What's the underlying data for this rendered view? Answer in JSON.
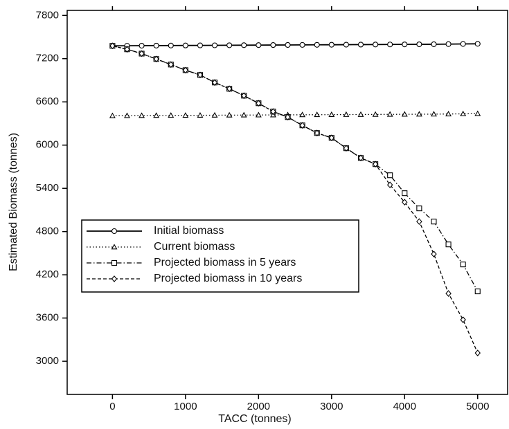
{
  "chart_data": {
    "type": "line",
    "xlabel": "TACC (tonnes)",
    "ylabel": "Estimated Biomass (tonnes)",
    "xlim": [
      -620,
      5410
    ],
    "ylim": [
      2540,
      7870
    ],
    "xticks": [
      0,
      1000,
      2000,
      3000,
      4000,
      5000
    ],
    "yticks": [
      3000,
      3600,
      4200,
      4800,
      5400,
      6000,
      6600,
      7200,
      7800
    ],
    "legend": "lower-left",
    "x": [
      0,
      200,
      400,
      600,
      800,
      1000,
      1200,
      1400,
      1600,
      1800,
      2000,
      2200,
      2400,
      2600,
      2800,
      3000,
      3200,
      3400,
      3600,
      3800,
      4000,
      4200,
      4400,
      4600,
      4800,
      5000
    ],
    "series": [
      {
        "name": "Initial biomass",
        "color": "#000000",
        "linestyle": "solid",
        "marker": "circle",
        "values": [
          7378,
          7379,
          7380,
          7381,
          7382,
          7383,
          7384,
          7385,
          7386,
          7387,
          7388,
          7389,
          7390,
          7391,
          7392,
          7393,
          7394,
          7395,
          7396,
          7397,
          7398,
          7399,
          7400,
          7402,
          7404,
          7406
        ]
      },
      {
        "name": "Current biomass",
        "color": "#000000",
        "linestyle": "dotted",
        "marker": "triangle",
        "values": [
          6408,
          6409,
          6410,
          6411,
          6412,
          6413,
          6414,
          6415,
          6416,
          6417,
          6418,
          6419,
          6420,
          6421,
          6422,
          6423,
          6424,
          6425,
          6426,
          6427,
          6428,
          6429,
          6430,
          6432,
          6434,
          6437
        ]
      },
      {
        "name": "Projected biomass in 5 years",
        "color": "#000000",
        "linestyle": "dashdot",
        "marker": "square",
        "values": [
          7378,
          7330,
          7270,
          7195,
          7118,
          7040,
          6974,
          6869,
          6782,
          6686,
          6581,
          6466,
          6389,
          6274,
          6168,
          6101,
          5957,
          5822,
          5736,
          5582,
          5333,
          5122,
          4939,
          4622,
          4344,
          3970
        ]
      },
      {
        "name": "Projected biomass in 10 years",
        "color": "#000000",
        "linestyle": "dashed",
        "marker": "diamond",
        "values": [
          7378,
          7330,
          7270,
          7195,
          7118,
          7040,
          6974,
          6869,
          6782,
          6686,
          6581,
          6466,
          6389,
          6274,
          6168,
          6101,
          5957,
          5822,
          5736,
          5448,
          5208,
          4939,
          4488,
          3941,
          3576,
          3115
        ]
      }
    ]
  }
}
